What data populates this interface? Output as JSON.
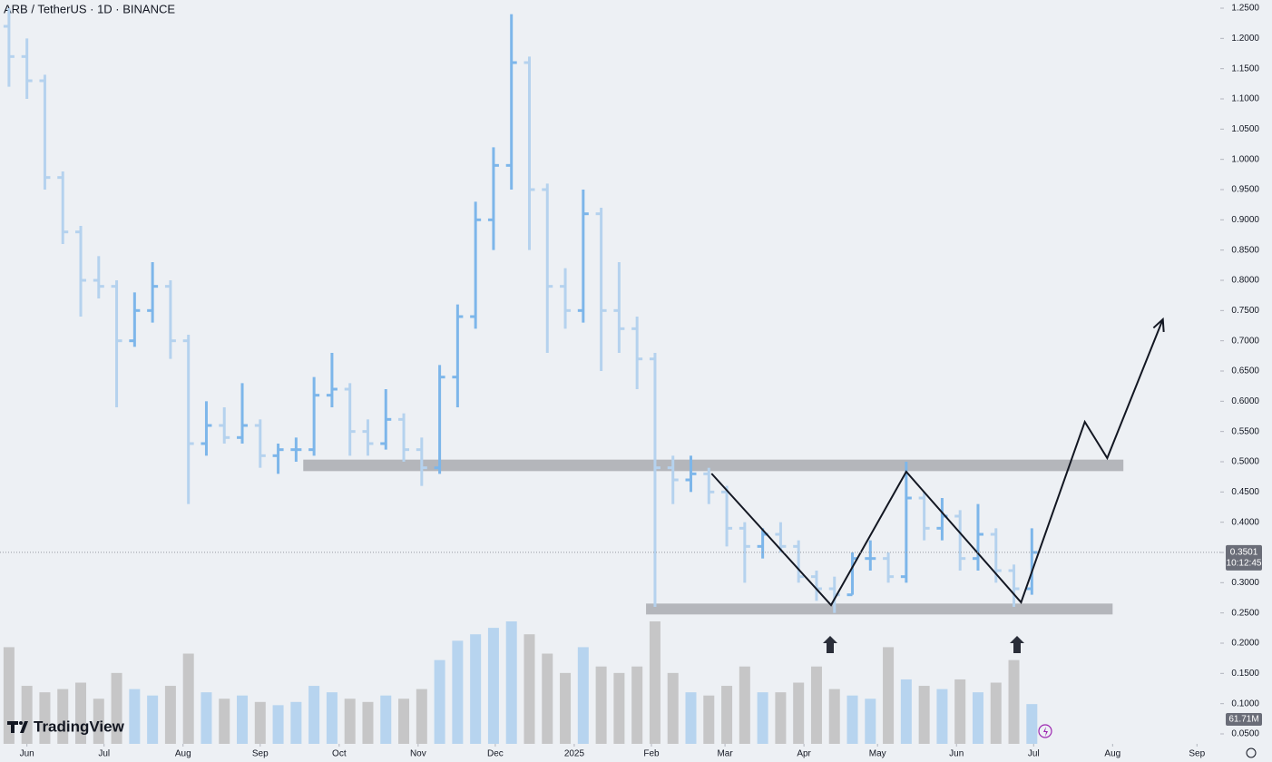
{
  "chart_data": {
    "type": "ohlc",
    "title": "ARB / TetherUS · 1D · BINANCE",
    "logo": "TradingView",
    "x": [
      0,
      1,
      2,
      3,
      4,
      5,
      6,
      7,
      8,
      9,
      10,
      11,
      12,
      13,
      14,
      15,
      16,
      17,
      18,
      19,
      20,
      21,
      22,
      23,
      24,
      25,
      26,
      27,
      28,
      29,
      30,
      31,
      32,
      33,
      34,
      35,
      36,
      37,
      38,
      39,
      40,
      41,
      42,
      43,
      44,
      45,
      46,
      47,
      48,
      49,
      50,
      51,
      52,
      53,
      54,
      55,
      56,
      57
    ],
    "open": [
      1.22,
      1.17,
      1.13,
      0.97,
      0.88,
      0.8,
      0.79,
      0.7,
      0.75,
      0.79,
      0.7,
      0.53,
      0.56,
      0.54,
      0.56,
      0.51,
      0.52,
      0.52,
      0.61,
      0.62,
      0.55,
      0.53,
      0.57,
      0.52,
      0.49,
      0.64,
      0.74,
      0.9,
      0.99,
      1.16,
      0.95,
      0.79,
      0.75,
      0.91,
      0.75,
      0.72,
      0.67,
      0.49,
      0.47,
      0.48,
      0.45,
      0.39,
      0.36,
      0.38,
      0.36,
      0.31,
      0.29,
      0.28,
      0.34,
      0.34,
      0.31,
      0.44,
      0.39,
      0.41,
      0.34,
      0.38,
      0.32,
      0.29
    ],
    "high": [
      1.25,
      1.2,
      1.14,
      0.98,
      0.89,
      0.84,
      0.8,
      0.78,
      0.83,
      0.8,
      0.71,
      0.6,
      0.59,
      0.63,
      0.57,
      0.53,
      0.54,
      0.64,
      0.68,
      0.63,
      0.57,
      0.62,
      0.58,
      0.54,
      0.66,
      0.76,
      0.93,
      1.02,
      1.24,
      1.17,
      0.96,
      0.82,
      0.95,
      0.92,
      0.83,
      0.74,
      0.68,
      0.51,
      0.51,
      0.49,
      0.46,
      0.4,
      0.39,
      0.4,
      0.37,
      0.32,
      0.31,
      0.35,
      0.37,
      0.35,
      0.5,
      0.45,
      0.44,
      0.42,
      0.43,
      0.39,
      0.33,
      0.39
    ],
    "low": [
      1.12,
      1.1,
      0.95,
      0.86,
      0.74,
      0.77,
      0.59,
      0.69,
      0.73,
      0.67,
      0.43,
      0.51,
      0.53,
      0.53,
      0.49,
      0.48,
      0.5,
      0.51,
      0.59,
      0.51,
      0.51,
      0.52,
      0.5,
      0.46,
      0.48,
      0.59,
      0.72,
      0.85,
      0.95,
      0.85,
      0.68,
      0.72,
      0.73,
      0.65,
      0.68,
      0.62,
      0.26,
      0.43,
      0.45,
      0.43,
      0.36,
      0.3,
      0.34,
      0.35,
      0.3,
      0.27,
      0.25,
      0.28,
      0.32,
      0.3,
      0.3,
      0.37,
      0.37,
      0.32,
      0.32,
      0.3,
      0.26,
      0.28
    ],
    "close": [
      1.17,
      1.13,
      0.97,
      0.88,
      0.8,
      0.79,
      0.7,
      0.75,
      0.79,
      0.7,
      0.53,
      0.56,
      0.54,
      0.56,
      0.51,
      0.52,
      0.52,
      0.61,
      0.62,
      0.55,
      0.53,
      0.57,
      0.52,
      0.49,
      0.64,
      0.74,
      0.9,
      0.99,
      1.16,
      0.95,
      0.79,
      0.75,
      0.91,
      0.75,
      0.72,
      0.67,
      0.49,
      0.47,
      0.48,
      0.45,
      0.39,
      0.36,
      0.38,
      0.36,
      0.31,
      0.29,
      0.28,
      0.34,
      0.34,
      0.31,
      0.44,
      0.39,
      0.41,
      0.34,
      0.38,
      0.32,
      0.29,
      0.3501
    ],
    "volume": [
      150,
      90,
      80,
      85,
      95,
      70,
      110,
      85,
      75,
      90,
      140,
      80,
      70,
      75,
      65,
      60,
      65,
      90,
      80,
      70,
      65,
      75,
      70,
      85,
      130,
      160,
      170,
      180,
      190,
      170,
      140,
      110,
      150,
      120,
      110,
      120,
      190,
      110,
      80,
      75,
      90,
      120,
      80,
      80,
      95,
      120,
      85,
      75,
      70,
      150,
      100,
      90,
      85,
      100,
      80,
      95,
      130,
      61.71
    ],
    "volume_label": "61.71M",
    "up_color": "#7db6ea",
    "down_color": "#b5d2ee",
    "volume_up_color": "#a9cdee",
    "volume_down_color": "#bcbcbc",
    "xlim": [
      -0.5,
      67.5
    ],
    "xticks": [
      {
        "value": 1.0,
        "label": "Jun"
      },
      {
        "value": 5.3,
        "label": "Jul"
      },
      {
        "value": 9.7,
        "label": "Aug"
      },
      {
        "value": 14.0,
        "label": "Sep"
      },
      {
        "value": 18.4,
        "label": "Oct"
      },
      {
        "value": 22.8,
        "label": "Nov"
      },
      {
        "value": 27.1,
        "label": "Dec"
      },
      {
        "value": 31.5,
        "label": "2025"
      },
      {
        "value": 35.8,
        "label": "Feb"
      },
      {
        "value": 39.9,
        "label": "Mar"
      },
      {
        "value": 44.3,
        "label": "Apr"
      },
      {
        "value": 48.4,
        "label": "May"
      },
      {
        "value": 52.8,
        "label": "Jun"
      },
      {
        "value": 57.1,
        "label": "Jul"
      },
      {
        "value": 61.5,
        "label": "Aug"
      },
      {
        "value": 66.2,
        "label": "Sep"
      }
    ],
    "ylim": [
      0.0335,
      1.2635
    ],
    "yticks": [
      {
        "value": 1.25,
        "label": "1.2500"
      },
      {
        "value": 1.2,
        "label": "1.2000"
      },
      {
        "value": 1.15,
        "label": "1.1500"
      },
      {
        "value": 1.1,
        "label": "1.1000"
      },
      {
        "value": 1.05,
        "label": "1.0500"
      },
      {
        "value": 1.0,
        "label": "1.0000"
      },
      {
        "value": 0.95,
        "label": "0.9500"
      },
      {
        "value": 0.9,
        "label": "0.9000"
      },
      {
        "value": 0.85,
        "label": "0.8500"
      },
      {
        "value": 0.8,
        "label": "0.8000"
      },
      {
        "value": 0.75,
        "label": "0.7500"
      },
      {
        "value": 0.7,
        "label": "0.7000"
      },
      {
        "value": 0.65,
        "label": "0.6500"
      },
      {
        "value": 0.6,
        "label": "0.6000"
      },
      {
        "value": 0.55,
        "label": "0.5500"
      },
      {
        "value": 0.5,
        "label": "0.5000"
      },
      {
        "value": 0.45,
        "label": "0.4500"
      },
      {
        "value": 0.4,
        "label": "0.4000"
      },
      {
        "value": 0.35,
        "label": "0.3500"
      },
      {
        "value": 0.3,
        "label": "0.3000"
      },
      {
        "value": 0.25,
        "label": "0.2500"
      },
      {
        "value": 0.2,
        "label": "0.2000"
      },
      {
        "value": 0.15,
        "label": "0.1500"
      },
      {
        "value": 0.1,
        "label": "0.1000"
      },
      {
        "value": 0.05,
        "label": "0.0500"
      }
    ],
    "grid": false,
    "last_price": 0.3501,
    "countdown": "10:12:45",
    "zones": [
      {
        "x": [
          16.4,
          62.1
        ],
        "y": [
          0.4845,
          0.5035
        ]
      },
      {
        "x": [
          35.5,
          61.5
        ],
        "y": [
          0.2475,
          0.2655
        ]
      }
    ],
    "pattern": {
      "x": [
        39.15,
        45.81,
        50.0,
        56.4,
        59.95,
        61.2,
        64.3
      ],
      "y": [
        0.4805,
        0.263,
        0.4835,
        0.2675,
        0.566,
        0.506,
        0.7355
      ]
    }
  }
}
